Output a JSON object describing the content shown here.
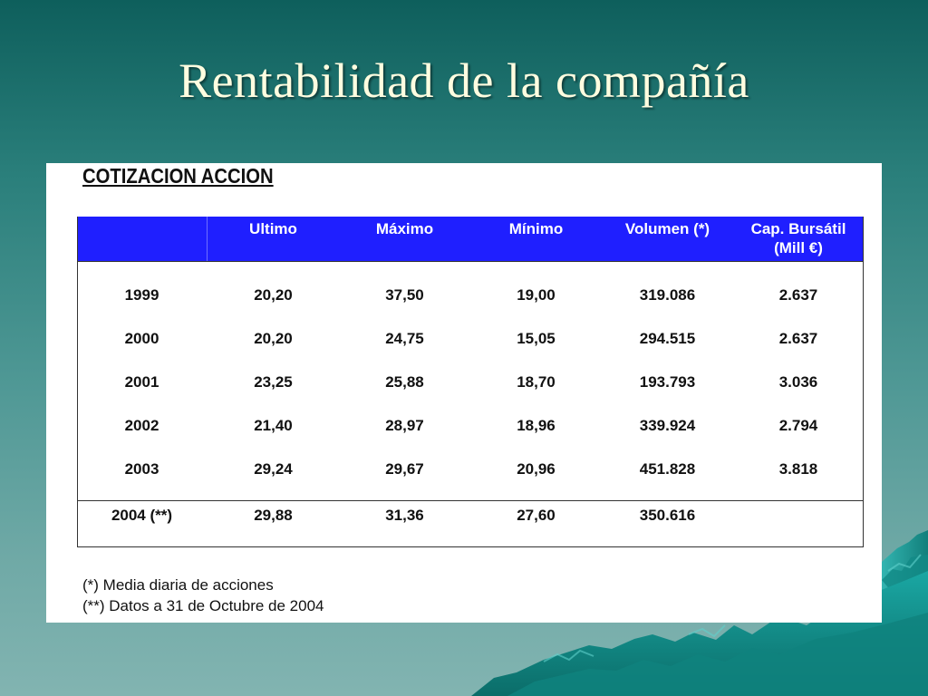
{
  "slide": {
    "title": "Rentabilidad de la compañía"
  },
  "sheet": {
    "heading": "COTIZACION ACCION",
    "columns": [
      "",
      "Ultimo",
      "Máximo",
      "Mínimo",
      "Volumen (*)",
      "Cap. Bursátil",
      "(Mill €)"
    ],
    "rows": [
      {
        "year": "1999",
        "ultimo": "20,20",
        "maximo": "37,50",
        "minimo": "19,00",
        "volumen": "319.086",
        "cap": "2.637"
      },
      {
        "year": "2000",
        "ultimo": "20,20",
        "maximo": "24,75",
        "minimo": "15,05",
        "volumen": "294.515",
        "cap": "2.637"
      },
      {
        "year": "2001",
        "ultimo": "23,25",
        "maximo": "25,88",
        "minimo": "18,70",
        "volumen": "193.793",
        "cap": "3.036"
      },
      {
        "year": "2002",
        "ultimo": "21,40",
        "maximo": "28,97",
        "minimo": "18,96",
        "volumen": "339.924",
        "cap": "2.794"
      },
      {
        "year": "2003",
        "ultimo": "29,24",
        "maximo": "29,67",
        "minimo": "20,96",
        "volumen": "451.828",
        "cap": "3.818"
      },
      {
        "year": "2004 (**)",
        "ultimo": "29,88",
        "maximo": "31,36",
        "minimo": "27,60",
        "volumen": "350.616",
        "cap": ""
      }
    ],
    "footnotes": [
      "(*) Media diaria de acciones",
      "(**) Datos a 31 de Octubre de 2004"
    ]
  },
  "colors": {
    "header_blue": "#1f1fff",
    "title_text": "#fffde0",
    "background_teal": "#2a7f7b"
  }
}
